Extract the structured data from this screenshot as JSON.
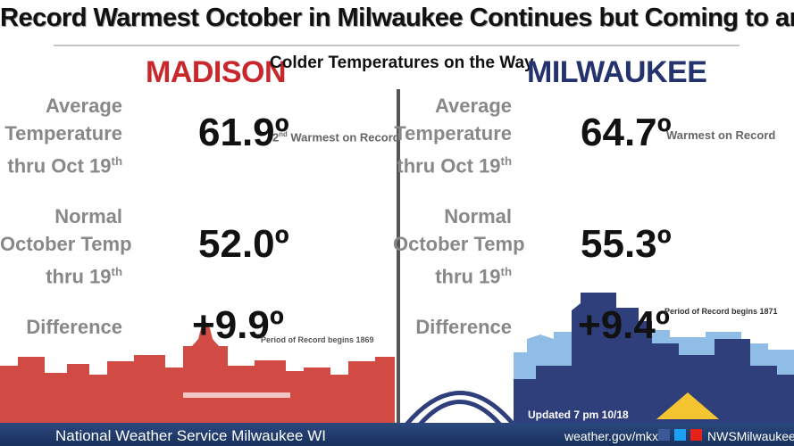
{
  "header": {
    "title": "Record Warmest October in Milwaukee Continues but Coming to an End",
    "subtitle": "Colder Temperatures on the Way"
  },
  "madison": {
    "name": "MADISON",
    "average": {
      "label": [
        "Average",
        "Temperature",
        "thru Oct 19"
      ],
      "label_sup": "th",
      "value": "61.9º",
      "rank": "2",
      "rank_sup": "nd",
      "note": "Warmest on Record"
    },
    "normal": {
      "label": [
        "Normal",
        "October Temp",
        "thru 19"
      ],
      "label_sup": "th",
      "value": "52.0º"
    },
    "difference": {
      "label": "Difference",
      "value": "+9.9º",
      "note": "Period of Record begins 1869"
    }
  },
  "milwaukee": {
    "name": "MILWAUKEE",
    "average": {
      "label": [
        "Average",
        "Temperature",
        "thru Oct 19"
      ],
      "label_sup": "th",
      "value": "64.7º",
      "note": "Warmest on Record"
    },
    "normal": {
      "label": [
        "Normal",
        "October Temp",
        "thru 19"
      ],
      "label_sup": "th",
      "value": "55.3º"
    },
    "difference": {
      "label": "Difference",
      "value": "+9.4º",
      "note": "Period of Record begins 1871"
    }
  },
  "updated": "Updated 7 pm 10/18",
  "footer": {
    "office": "National Weather Service Milwaukee WI",
    "website": "weather.gov/mkx",
    "handle": "NWSMilwaukee"
  }
}
